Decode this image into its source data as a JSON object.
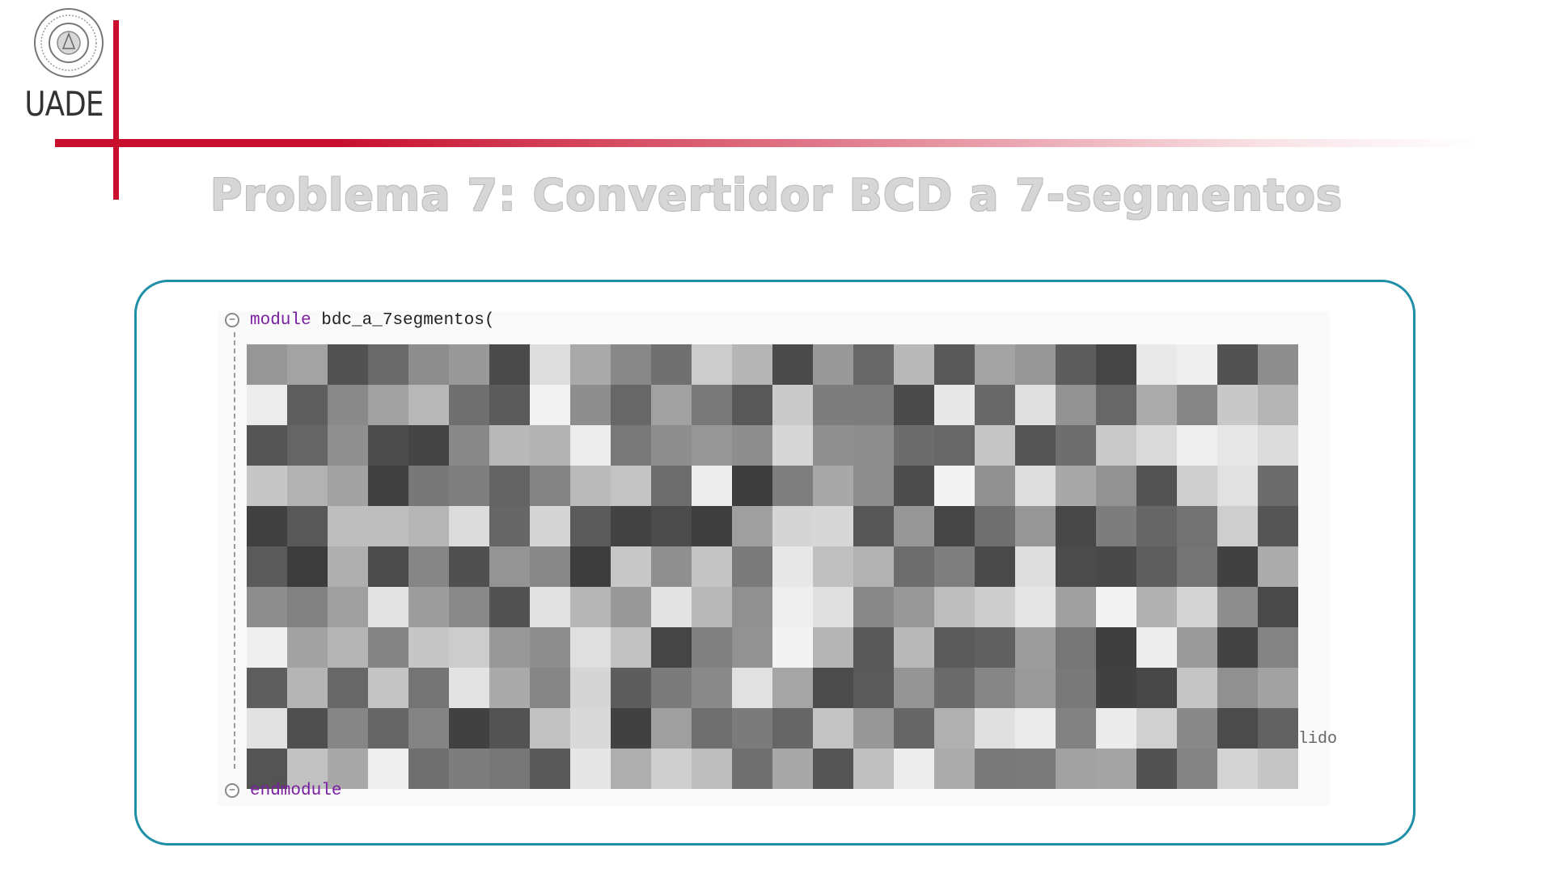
{
  "logo": {
    "text": "UADE",
    "seal_icon": "university-seal-icon"
  },
  "slide": {
    "title": "Problema 7:  Convertidor BCD a 7-segmentos"
  },
  "code": {
    "header_keyword": "module",
    "header_rest": " bdc_a_7segmentos(",
    "footer_keyword": "endmodule",
    "fragment": "lido"
  },
  "colors": {
    "brand_red": "#c8102e",
    "card_border": "#1f8fa6",
    "keyword": "#7a1fa2"
  }
}
